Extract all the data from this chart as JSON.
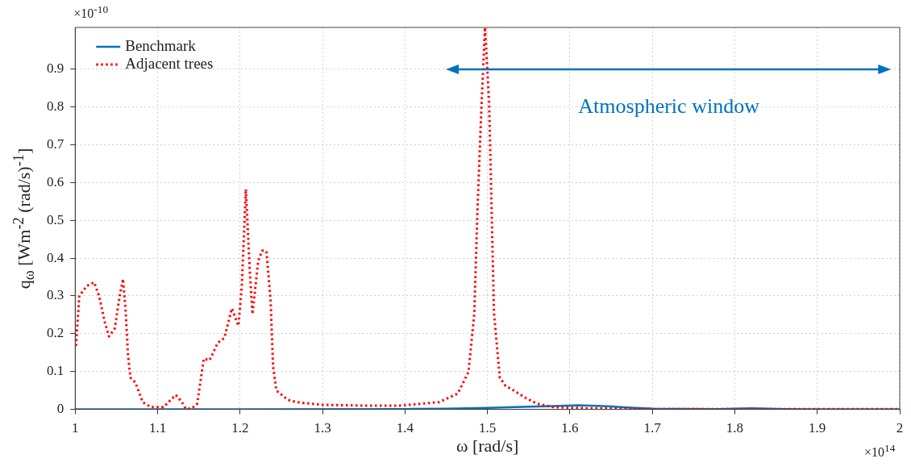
{
  "chart_data": {
    "type": "line",
    "xlabel": "ω  [rad/s]",
    "ylabel": "q$_{ω}$ [Wm$^{-2}$ (rad/s)$^{-1}$]",
    "xlim": [
      1,
      2
    ],
    "xticks": [
      1,
      1.1,
      1.2,
      1.3,
      1.4,
      1.5,
      1.6,
      1.7,
      1.8,
      1.9,
      2
    ],
    "ylim": [
      0,
      1.01
    ],
    "yticks": [
      0,
      0.1,
      0.2,
      0.3,
      0.4,
      0.5,
      0.6,
      0.7,
      0.8,
      0.9
    ],
    "grid": true,
    "legend": "top left",
    "marker": "none",
    "annotations": [
      "×10$^{-10}$",
      "×10$^{14}$",
      "Atmospheric window"
    ],
    "series": [
      {
        "name": "Benchmark",
        "color": "#0072bd",
        "line_style": "solid",
        "x": [
          1,
          1.2,
          1.4,
          1.45,
          1.5,
          1.55,
          1.58,
          1.61,
          1.64,
          1.67,
          1.7,
          1.78,
          1.82,
          1.86,
          1.9,
          2
        ],
        "values": [
          0,
          0,
          0.001,
          0.002,
          0.004,
          0.007,
          0.009,
          0.011,
          0.009,
          0.005,
          0.002,
          0.001,
          0.003,
          0.001,
          0,
          0
        ]
      },
      {
        "name": "Adjacent trees",
        "color": "#ff0000",
        "line_style": "dotted",
        "x": [
          1.001,
          1.005,
          1.014,
          1.023,
          1.029,
          1.036,
          1.041,
          1.048,
          1.054,
          1.058,
          1.061,
          1.064,
          1.067,
          1.073,
          1.082,
          1.092,
          1.107,
          1.122,
          1.129,
          1.134,
          1.141,
          1.148,
          1.156,
          1.163,
          1.173,
          1.181,
          1.19,
          1.198,
          1.202,
          1.207,
          1.212,
          1.215,
          1.222,
          1.227,
          1.232,
          1.237,
          1.24,
          1.244,
          1.258,
          1.269,
          1.3,
          1.35,
          1.393,
          1.441,
          1.464,
          1.477,
          1.484,
          1.488,
          1.493,
          1.497,
          1.502,
          1.505,
          1.508,
          1.515,
          1.522,
          1.532,
          1.545,
          1.56,
          1.58,
          1.62,
          1.7,
          1.8,
          2
        ],
        "values": [
          0.168,
          0.3,
          0.326,
          0.336,
          0.3,
          0.23,
          0.193,
          0.214,
          0.3,
          0.345,
          0.267,
          0.147,
          0.084,
          0.071,
          0.019,
          0.006,
          0.006,
          0.038,
          0.021,
          0.002,
          0.002,
          0.015,
          0.134,
          0.13,
          0.176,
          0.189,
          0.267,
          0.221,
          0.324,
          0.582,
          0.357,
          0.252,
          0.393,
          0.42,
          0.418,
          0.288,
          0.114,
          0.05,
          0.025,
          0.019,
          0.012,
          0.01,
          0.01,
          0.019,
          0.042,
          0.099,
          0.252,
          0.534,
          0.814,
          1.01,
          0.814,
          0.534,
          0.252,
          0.084,
          0.062,
          0.05,
          0.032,
          0.015,
          0.006,
          0.003,
          0.001,
          0.001,
          0.001
        ]
      }
    ]
  }
}
